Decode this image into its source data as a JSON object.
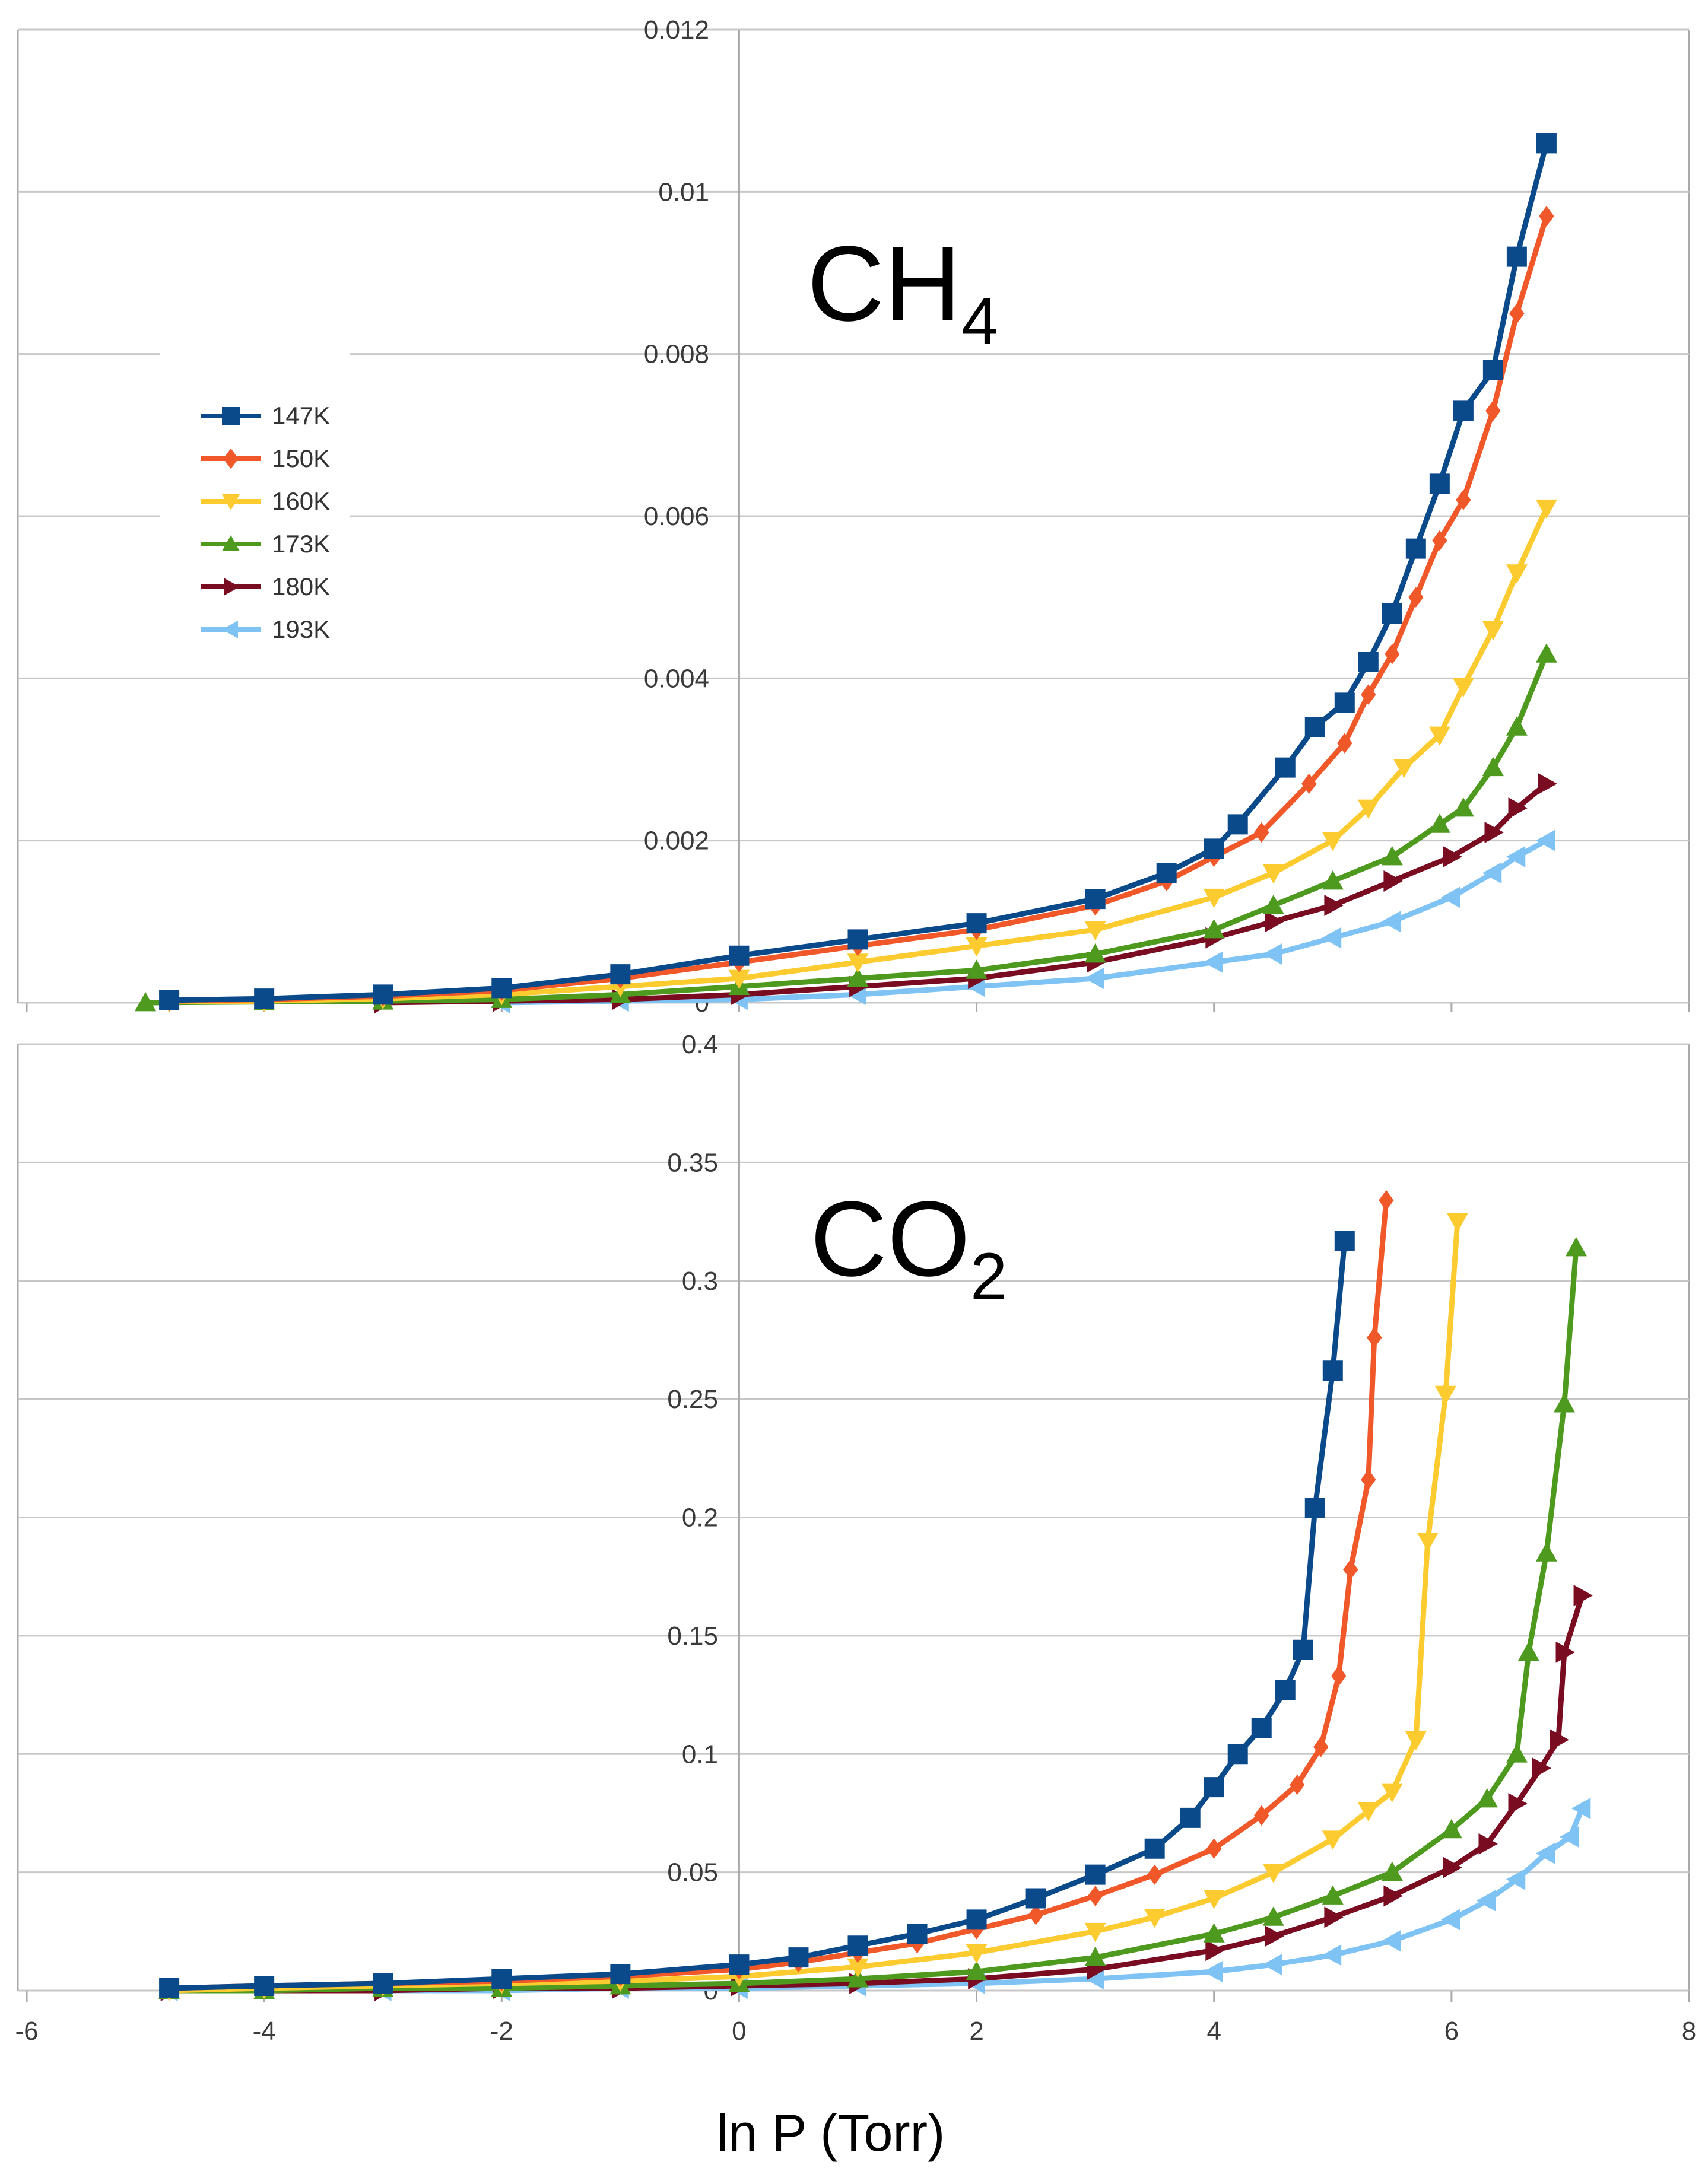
{
  "x_axis_label": "ln P (Torr)",
  "colors": {
    "147K": "#0b4a8a",
    "150K": "#f0582a",
    "160K": "#fbcb2f",
    "173K": "#4e9a1f",
    "180K": "#7a0c22",
    "193K": "#7fc3f4",
    "grid": "#c8c8c8",
    "axis": "#a9a9a9"
  },
  "chart_data": [
    {
      "type": "line",
      "title": "CH",
      "title_subscript": "4",
      "xlabel": "",
      "ylabel": "",
      "xlim": [
        -6,
        8
      ],
      "ylim": [
        0,
        0.012
      ],
      "y_ticks": [
        "0",
        "0.002",
        "0.004",
        "0.006",
        "0.008",
        "0.01",
        "0.012"
      ],
      "y_tick_values": [
        0,
        0.002,
        0.004,
        0.006,
        0.008,
        0.01,
        0.012
      ],
      "x_tick_values": [
        -6,
        -4,
        -2,
        0,
        2,
        4,
        6,
        8
      ],
      "legend": {
        "position": "left",
        "entries": [
          "147K",
          "150K",
          "160K",
          "173K",
          "180K",
          "193K"
        ]
      },
      "series": [
        {
          "name": "147K",
          "marker": "square",
          "points": [
            [
              -4.8,
              3e-05
            ],
            [
              -4.0,
              5e-05
            ],
            [
              -3.0,
              0.0001
            ],
            [
              -2.0,
              0.00018
            ],
            [
              -1.0,
              0.00035
            ],
            [
              0.0,
              0.00058
            ],
            [
              1.0,
              0.00078
            ],
            [
              2.0,
              0.00098
            ],
            [
              3.0,
              0.00128
            ],
            [
              3.6,
              0.0016
            ],
            [
              4.0,
              0.0019
            ],
            [
              4.2,
              0.0022
            ],
            [
              4.6,
              0.0029
            ],
            [
              4.85,
              0.0034
            ],
            [
              5.1,
              0.0037
            ],
            [
              5.3,
              0.0042
            ],
            [
              5.5,
              0.0048
            ],
            [
              5.7,
              0.0056
            ],
            [
              5.9,
              0.0064
            ],
            [
              6.1,
              0.0073
            ],
            [
              6.35,
              0.0078
            ],
            [
              6.55,
              0.0092
            ],
            [
              6.8,
              0.0106
            ]
          ]
        },
        {
          "name": "150K",
          "marker": "diamond",
          "points": [
            [
              -4.8,
              2e-05
            ],
            [
              -4.0,
              4e-05
            ],
            [
              -3.0,
              8e-05
            ],
            [
              -2.0,
              0.00015
            ],
            [
              -1.0,
              0.0003
            ],
            [
              0.0,
              0.0005
            ],
            [
              1.0,
              0.0007
            ],
            [
              2.0,
              0.0009
            ],
            [
              3.0,
              0.0012
            ],
            [
              3.6,
              0.0015
            ],
            [
              4.0,
              0.0018
            ],
            [
              4.4,
              0.0021
            ],
            [
              4.8,
              0.0027
            ],
            [
              5.1,
              0.0032
            ],
            [
              5.3,
              0.0038
            ],
            [
              5.5,
              0.0043
            ],
            [
              5.7,
              0.005
            ],
            [
              5.9,
              0.0057
            ],
            [
              6.1,
              0.0062
            ],
            [
              6.35,
              0.0073
            ],
            [
              6.55,
              0.0085
            ],
            [
              6.8,
              0.0097
            ]
          ]
        },
        {
          "name": "160K",
          "marker": "triangle-down",
          "points": [
            [
              -4.8,
              1e-05
            ],
            [
              -4.0,
              2e-05
            ],
            [
              -3.0,
              5e-05
            ],
            [
              -2.0,
              0.0001
            ],
            [
              -1.0,
              0.0002
            ],
            [
              0.0,
              0.0003
            ],
            [
              1.0,
              0.0005
            ],
            [
              2.0,
              0.0007
            ],
            [
              3.0,
              0.0009
            ],
            [
              4.0,
              0.0013
            ],
            [
              4.5,
              0.0016
            ],
            [
              5.0,
              0.002
            ],
            [
              5.3,
              0.0024
            ],
            [
              5.6,
              0.0029
            ],
            [
              5.9,
              0.0033
            ],
            [
              6.1,
              0.0039
            ],
            [
              6.35,
              0.0046
            ],
            [
              6.55,
              0.0053
            ],
            [
              6.8,
              0.0061
            ]
          ]
        },
        {
          "name": "173K",
          "marker": "triangle-up",
          "points": [
            [
              -5.0,
              0.0
            ],
            [
              -4.0,
              1e-05
            ],
            [
              -3.0,
              2e-05
            ],
            [
              -2.0,
              4e-05
            ],
            [
              -1.0,
              0.0001
            ],
            [
              0.0,
              0.0002
            ],
            [
              1.0,
              0.0003
            ],
            [
              2.0,
              0.0004
            ],
            [
              3.0,
              0.0006
            ],
            [
              4.0,
              0.0009
            ],
            [
              4.5,
              0.0012
            ],
            [
              5.0,
              0.0015
            ],
            [
              5.5,
              0.0018
            ],
            [
              5.9,
              0.0022
            ],
            [
              6.1,
              0.0024
            ],
            [
              6.35,
              0.0029
            ],
            [
              6.55,
              0.0034
            ],
            [
              6.8,
              0.0043
            ]
          ]
        },
        {
          "name": "180K",
          "marker": "triangle-right",
          "points": [
            [
              -3.0,
              0.0
            ],
            [
              -2.0,
              2e-05
            ],
            [
              -1.0,
              4e-05
            ],
            [
              0.0,
              0.0001
            ],
            [
              1.0,
              0.0002
            ],
            [
              2.0,
              0.0003
            ],
            [
              3.0,
              0.0005
            ],
            [
              4.0,
              0.0008
            ],
            [
              4.5,
              0.001
            ],
            [
              5.0,
              0.0012
            ],
            [
              5.5,
              0.0015
            ],
            [
              6.0,
              0.0018
            ],
            [
              6.35,
              0.0021
            ],
            [
              6.55,
              0.0024
            ],
            [
              6.8,
              0.0027
            ]
          ]
        },
        {
          "name": "193K",
          "marker": "triangle-left",
          "points": [
            [
              -2.0,
              0.0
            ],
            [
              -1.0,
              2e-05
            ],
            [
              0.0,
              4e-05
            ],
            [
              1.0,
              0.0001
            ],
            [
              2.0,
              0.0002
            ],
            [
              3.0,
              0.0003
            ],
            [
              4.0,
              0.0005
            ],
            [
              4.5,
              0.0006
            ],
            [
              5.0,
              0.0008
            ],
            [
              5.5,
              0.001
            ],
            [
              6.0,
              0.0013
            ],
            [
              6.35,
              0.0016
            ],
            [
              6.55,
              0.0018
            ],
            [
              6.8,
              0.002
            ]
          ]
        }
      ]
    },
    {
      "type": "line",
      "title": "CO",
      "title_subscript": "2",
      "xlabel": "ln P (Torr)",
      "ylabel": "",
      "xlim": [
        -6,
        8
      ],
      "ylim": [
        0,
        0.4
      ],
      "y_ticks": [
        "0",
        "0.05",
        "0.1",
        "0.15",
        "0.2",
        "0.25",
        "0.3",
        "0.35",
        "0.4"
      ],
      "y_tick_values": [
        0,
        0.05,
        0.1,
        0.15,
        0.2,
        0.25,
        0.3,
        0.35,
        0.4
      ],
      "x_ticks": [
        "-6",
        "-4",
        "-2",
        "0",
        "2",
        "4",
        "6",
        "8"
      ],
      "x_tick_values": [
        -6,
        -4,
        -2,
        0,
        2,
        4,
        6,
        8
      ],
      "series": [
        {
          "name": "147K",
          "marker": "square",
          "points": [
            [
              -4.8,
              0.001
            ],
            [
              -4.0,
              0.002
            ],
            [
              -3.0,
              0.003
            ],
            [
              -2.0,
              0.005
            ],
            [
              -1.0,
              0.007
            ],
            [
              0.0,
              0.011
            ],
            [
              0.5,
              0.014
            ],
            [
              1.0,
              0.019
            ],
            [
              1.5,
              0.024
            ],
            [
              2.0,
              0.03
            ],
            [
              2.5,
              0.039
            ],
            [
              3.0,
              0.049
            ],
            [
              3.5,
              0.06
            ],
            [
              3.8,
              0.073
            ],
            [
              4.0,
              0.086
            ],
            [
              4.2,
              0.1
            ],
            [
              4.4,
              0.111
            ],
            [
              4.6,
              0.127
            ],
            [
              4.75,
              0.144
            ],
            [
              4.85,
              0.204
            ],
            [
              5.0,
              0.262
            ],
            [
              5.1,
              0.317
            ]
          ]
        },
        {
          "name": "150K",
          "marker": "diamond",
          "points": [
            [
              -4.8,
              0.001
            ],
            [
              -4.0,
              0.002
            ],
            [
              -3.0,
              0.003
            ],
            [
              -2.0,
              0.004
            ],
            [
              -1.0,
              0.006
            ],
            [
              0.0,
              0.009
            ],
            [
              0.5,
              0.012
            ],
            [
              1.0,
              0.016
            ],
            [
              1.5,
              0.02
            ],
            [
              2.0,
              0.026
            ],
            [
              2.5,
              0.032
            ],
            [
              3.0,
              0.04
            ],
            [
              3.5,
              0.049
            ],
            [
              4.0,
              0.06
            ],
            [
              4.4,
              0.074
            ],
            [
              4.7,
              0.087
            ],
            [
              4.9,
              0.103
            ],
            [
              5.05,
              0.133
            ],
            [
              5.15,
              0.178
            ],
            [
              5.3,
              0.216
            ],
            [
              5.35,
              0.276
            ],
            [
              5.45,
              0.334
            ]
          ]
        },
        {
          "name": "160K",
          "marker": "triangle-down",
          "points": [
            [
              -4.8,
              0.0
            ],
            [
              -4.0,
              0.001
            ],
            [
              -3.0,
              0.002
            ],
            [
              -2.0,
              0.003
            ],
            [
              -1.0,
              0.004
            ],
            [
              0.0,
              0.006
            ],
            [
              1.0,
              0.01
            ],
            [
              2.0,
              0.016
            ],
            [
              3.0,
              0.025
            ],
            [
              3.5,
              0.031
            ],
            [
              4.0,
              0.039
            ],
            [
              4.5,
              0.05
            ],
            [
              5.0,
              0.064
            ],
            [
              5.3,
              0.076
            ],
            [
              5.5,
              0.084
            ],
            [
              5.7,
              0.106
            ],
            [
              5.8,
              0.19
            ],
            [
              5.95,
              0.252
            ],
            [
              6.05,
              0.325
            ]
          ]
        },
        {
          "name": "173K",
          "marker": "triangle-up",
          "points": [
            [
              -4.8,
              0.0
            ],
            [
              -4.0,
              0.0
            ],
            [
              -3.0,
              0.001
            ],
            [
              -2.0,
              0.001
            ],
            [
              -1.0,
              0.002
            ],
            [
              0.0,
              0.003
            ],
            [
              1.0,
              0.005
            ],
            [
              2.0,
              0.008
            ],
            [
              3.0,
              0.014
            ],
            [
              4.0,
              0.024
            ],
            [
              4.5,
              0.031
            ],
            [
              5.0,
              0.04
            ],
            [
              5.5,
              0.05
            ],
            [
              6.0,
              0.068
            ],
            [
              6.3,
              0.081
            ],
            [
              6.55,
              0.1
            ],
            [
              6.65,
              0.143
            ],
            [
              6.8,
              0.185
            ],
            [
              6.95,
              0.248
            ],
            [
              7.05,
              0.314
            ]
          ]
        },
        {
          "name": "180K",
          "marker": "triangle-right",
          "points": [
            [
              -4.8,
              0.0
            ],
            [
              -3.0,
              0.0
            ],
            [
              -2.0,
              0.001
            ],
            [
              -1.0,
              0.001
            ],
            [
              0.0,
              0.002
            ],
            [
              1.0,
              0.003
            ],
            [
              2.0,
              0.005
            ],
            [
              3.0,
              0.009
            ],
            [
              4.0,
              0.017
            ],
            [
              4.5,
              0.023
            ],
            [
              5.0,
              0.031
            ],
            [
              5.5,
              0.04
            ],
            [
              6.0,
              0.052
            ],
            [
              6.3,
              0.062
            ],
            [
              6.55,
              0.079
            ],
            [
              6.75,
              0.094
            ],
            [
              6.9,
              0.106
            ],
            [
              6.95,
              0.143
            ],
            [
              7.1,
              0.167
            ]
          ]
        },
        {
          "name": "193K",
          "marker": "triangle-left",
          "points": [
            [
              -4.8,
              0.0
            ],
            [
              -3.0,
              0.0
            ],
            [
              -2.0,
              0.0
            ],
            [
              -1.0,
              0.001
            ],
            [
              0.0,
              0.001
            ],
            [
              1.0,
              0.002
            ],
            [
              2.0,
              0.003
            ],
            [
              3.0,
              0.005
            ],
            [
              4.0,
              0.008
            ],
            [
              4.5,
              0.011
            ],
            [
              5.0,
              0.015
            ],
            [
              5.5,
              0.021
            ],
            [
              6.0,
              0.03
            ],
            [
              6.3,
              0.038
            ],
            [
              6.55,
              0.047
            ],
            [
              6.8,
              0.058
            ],
            [
              7.0,
              0.065
            ],
            [
              7.1,
              0.077
            ]
          ]
        }
      ]
    }
  ]
}
